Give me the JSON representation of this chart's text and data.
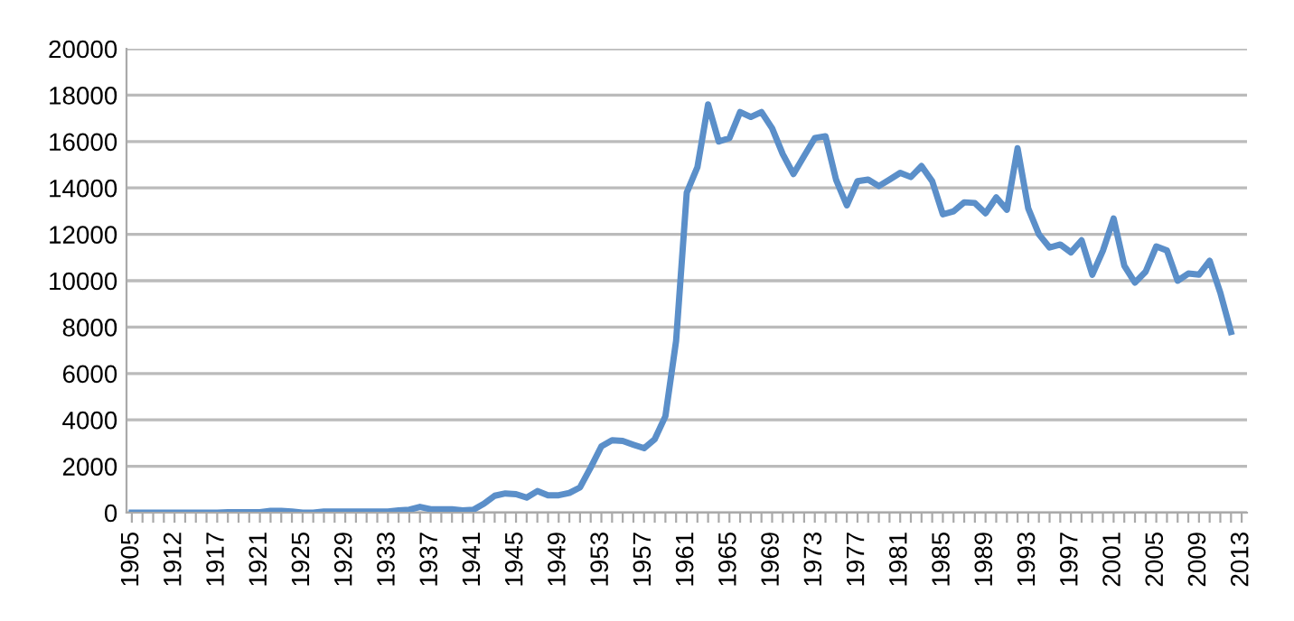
{
  "chart_data": {
    "type": "line",
    "categories": [
      "1905",
      null,
      null,
      null,
      "1912",
      null,
      null,
      null,
      "1917",
      null,
      null,
      null,
      "1921",
      null,
      null,
      null,
      "1925",
      null,
      null,
      null,
      "1929",
      null,
      null,
      null,
      "1933",
      null,
      null,
      null,
      "1937",
      null,
      null,
      null,
      "1941",
      null,
      null,
      null,
      "1945",
      null,
      null,
      null,
      "1949",
      null,
      null,
      null,
      "1953",
      null,
      null,
      null,
      "1957",
      null,
      null,
      null,
      "1961",
      null,
      null,
      null,
      "1965",
      null,
      null,
      null,
      "1969",
      null,
      null,
      null,
      "1973",
      null,
      null,
      null,
      "1977",
      null,
      null,
      null,
      "1981",
      null,
      null,
      null,
      "1985",
      null,
      null,
      null,
      "1989",
      null,
      null,
      null,
      "1993",
      null,
      null,
      null,
      "1997",
      null,
      null,
      null,
      "2001",
      null,
      null,
      null,
      "2005",
      null,
      null,
      null,
      "2009",
      null,
      null,
      null,
      "2013"
    ],
    "series": [
      {
        "color": "#5b8fc9",
        "values": [
          0,
          0,
          0,
          0,
          0,
          0,
          0,
          0,
          0,
          20,
          20,
          20,
          20,
          80,
          80,
          50,
          0,
          0,
          50,
          50,
          50,
          50,
          50,
          50,
          50,
          100,
          130,
          250,
          150,
          150,
          150,
          100,
          130,
          390,
          730,
          830,
          800,
          650,
          930,
          750,
          750,
          850,
          1090,
          1950,
          2860,
          3120,
          3090,
          2930,
          2780,
          3170,
          4160,
          7400,
          13800,
          14900,
          17600,
          16000,
          16150,
          17270,
          17060,
          17270,
          16570,
          15450,
          14600,
          15380,
          16150,
          16230,
          14340,
          13250,
          14290,
          14360,
          14080,
          14360,
          14650,
          14470,
          14940,
          14290,
          12860,
          12990,
          13380,
          13350,
          12910,
          13590,
          13060,
          15710,
          13120,
          12000,
          11430,
          11560,
          11220,
          11740,
          10260,
          11300,
          12680,
          10650,
          9920,
          10390,
          11480,
          11300,
          10000,
          10310,
          10260,
          10860,
          9480,
          7790,
          null
        ]
      }
    ],
    "ylim": [
      0,
      20000
    ],
    "yticks": [
      0,
      2000,
      4000,
      6000,
      8000,
      10000,
      12000,
      14000,
      16000,
      18000,
      20000
    ],
    "grid": "y",
    "legend": false,
    "marker": "none",
    "line_style": "solid"
  }
}
